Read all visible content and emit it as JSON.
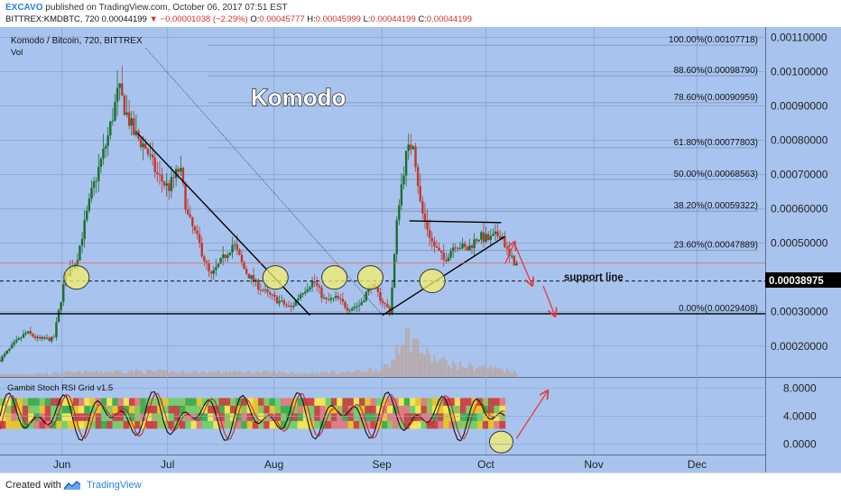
{
  "header": {
    "author": "EXCAVO",
    "published": "published on TradingView.com, October 06, 2017 07:51 EST",
    "symbol": "BITTREX:KMDBTC, 720",
    "last": "0.00044199",
    "arrow": "▼",
    "change": "−0.00001038 (−2.29%)",
    "o_label": "O:",
    "o": "0.00045777",
    "h_label": "H:",
    "h": "0.00045999",
    "l_label": "L:",
    "l": "0.00044199",
    "c_label": "C:",
    "c": "0.00044199"
  },
  "footer": {
    "created": "Created with",
    "brand": "TradingView"
  },
  "colors": {
    "background": "#a8c4ee",
    "candle_up": "#1b6e2c",
    "candle_down": "#c0392b",
    "volume": "#b9a6a3",
    "annotation_red": "#e53935",
    "circle_fill": "#f5f06a"
  },
  "chart_data": {
    "type": "candlestick",
    "legend_title": "Komodo / Bitcoin, 720, BITTREX",
    "volume_label": "Vol",
    "indicator_label": "Gambit Stoch RSI Grid v1.5",
    "annotation_title": "Komodo",
    "support_label": "support line",
    "current_price_label": "0.00038975",
    "current_price": 0.00038975,
    "last_close": 0.00044199,
    "ylim": [
      0.00011,
      0.00113
    ],
    "y_ticks": [
      {
        "value": 0.0011,
        "label": "0.00110000"
      },
      {
        "value": 0.001,
        "label": "0.00100000"
      },
      {
        "value": 0.0009,
        "label": "0.00090000"
      },
      {
        "value": 0.0008,
        "label": "0.00080000"
      },
      {
        "value": 0.0007,
        "label": "0.00070000"
      },
      {
        "value": 0.0006,
        "label": "0.00060000"
      },
      {
        "value": 0.0005,
        "label": "0.00050000"
      },
      {
        "value": 0.0003,
        "label": "0.00030000"
      },
      {
        "value": 0.0002,
        "label": "0.00020000"
      }
    ],
    "fib_levels": [
      {
        "label": "100.00%(0.00107718)",
        "value": 0.00107718
      },
      {
        "label": "88.60%(0.00098790)",
        "value": 0.0009879
      },
      {
        "label": "78.60%(0.00090959)",
        "value": 0.00090959
      },
      {
        "label": "61.80%(0.00077803)",
        "value": 0.00077803
      },
      {
        "label": "50.00%(0.00068563)",
        "value": 0.00068563
      },
      {
        "label": "38.20%(0.00059322)",
        "value": 0.00059322
      },
      {
        "label": "23.60%(0.00047889)",
        "value": 0.00047889
      },
      {
        "label": "0.00%(0.00029408)",
        "value": 0.00029408
      }
    ],
    "x_ticks": [
      {
        "label": "Jun",
        "t": 0.081
      },
      {
        "label": "Jul",
        "t": 0.219
      },
      {
        "label": "Aug",
        "t": 0.358
      },
      {
        "label": "Sep",
        "t": 0.499
      },
      {
        "label": "Oct",
        "t": 0.635
      },
      {
        "label": "Nov",
        "t": 0.776
      },
      {
        "label": "Dec",
        "t": 0.911
      }
    ],
    "price_path": [
      [
        0.0,
        0.00016
      ],
      [
        0.02,
        0.00021
      ],
      [
        0.035,
        0.00024
      ],
      [
        0.05,
        0.00022
      ],
      [
        0.07,
        0.00022
      ],
      [
        0.085,
        0.0004
      ],
      [
        0.1,
        0.00045
      ],
      [
        0.12,
        0.00065
      ],
      [
        0.14,
        0.0008
      ],
      [
        0.155,
        0.00095
      ],
      [
        0.165,
        0.00088
      ],
      [
        0.175,
        0.00082
      ],
      [
        0.19,
        0.00078
      ],
      [
        0.205,
        0.0007
      ],
      [
        0.22,
        0.00066
      ],
      [
        0.235,
        0.00072
      ],
      [
        0.245,
        0.00058
      ],
      [
        0.26,
        0.0005
      ],
      [
        0.275,
        0.0004
      ],
      [
        0.29,
        0.00045
      ],
      [
        0.305,
        0.0005
      ],
      [
        0.32,
        0.00042
      ],
      [
        0.335,
        0.00038
      ],
      [
        0.35,
        0.00035
      ],
      [
        0.365,
        0.00033
      ],
      [
        0.38,
        0.00031
      ],
      [
        0.395,
        0.00036
      ],
      [
        0.41,
        0.00039
      ],
      [
        0.425,
        0.00033
      ],
      [
        0.44,
        0.00034
      ],
      [
        0.455,
        0.00031
      ],
      [
        0.47,
        0.00032
      ],
      [
        0.485,
        0.00038
      ],
      [
        0.5,
        0.00033
      ],
      [
        0.51,
        0.0003
      ],
      [
        0.52,
        0.0006
      ],
      [
        0.53,
        0.00075
      ],
      [
        0.54,
        0.0008
      ],
      [
        0.55,
        0.0006
      ],
      [
        0.565,
        0.0005
      ],
      [
        0.58,
        0.00045
      ],
      [
        0.595,
        0.0005
      ],
      [
        0.61,
        0.00048
      ],
      [
        0.625,
        0.00052
      ],
      [
        0.64,
        0.00051
      ],
      [
        0.655,
        0.00053
      ],
      [
        0.665,
        0.00046
      ],
      [
        0.675,
        0.00044
      ]
    ],
    "volume_path": [
      [
        0.0,
        0.05
      ],
      [
        0.08,
        0.08
      ],
      [
        0.16,
        0.12
      ],
      [
        0.25,
        0.1
      ],
      [
        0.33,
        0.1
      ],
      [
        0.4,
        0.08
      ],
      [
        0.46,
        0.1
      ],
      [
        0.51,
        0.2
      ],
      [
        0.52,
        0.7
      ],
      [
        0.53,
        1.0
      ],
      [
        0.545,
        0.65
      ],
      [
        0.56,
        0.4
      ],
      [
        0.6,
        0.22
      ],
      [
        0.65,
        0.18
      ],
      [
        0.675,
        0.12
      ]
    ],
    "trendlines": [
      {
        "from": [
          0.18,
          0.00082
        ],
        "to": [
          0.405,
          0.00029
        ],
        "style": "solid"
      },
      {
        "from": [
          0.19,
          0.00107
        ],
        "to": [
          0.5,
          0.00029
        ],
        "style": "thin"
      },
      {
        "from": [
          0.0,
          0.00029408
        ],
        "to": [
          1.0,
          0.00029408
        ],
        "style": "solid"
      },
      {
        "from": [
          0.5,
          0.00029
        ],
        "to": [
          0.66,
          0.00052
        ],
        "style": "solid"
      },
      {
        "from": [
          0.535,
          0.000565
        ],
        "to": [
          0.655,
          0.00056
        ],
        "style": "solid"
      },
      {
        "from": [
          0.0,
          0.00044199
        ],
        "to": [
          1.0,
          0.00044199
        ],
        "style": "price"
      },
      {
        "from": [
          0.0,
          0.00038975
        ],
        "to": [
          1.0,
          0.00038975
        ],
        "style": "dashed"
      }
    ],
    "circles": [
      {
        "t": 0.1,
        "v": 0.0004
      },
      {
        "t": 0.36,
        "v": 0.0004
      },
      {
        "t": 0.437,
        "v": 0.0004
      },
      {
        "t": 0.484,
        "v": 0.0004
      },
      {
        "t": 0.565,
        "v": 0.00039
      }
    ],
    "arrows": [
      {
        "from": [
          0.66,
          0.00044
        ],
        "to": [
          0.672,
          0.0005
        ]
      },
      {
        "from": [
          0.672,
          0.0005
        ],
        "to": [
          0.695,
          0.00038
        ]
      },
      {
        "from": [
          0.71,
          0.000375
        ],
        "to": [
          0.725,
          0.00029
        ]
      }
    ],
    "indicator": {
      "ylim": [
        -1.5,
        9.5
      ],
      "ticks": [
        {
          "value": 8,
          "label": "8.0000"
        },
        {
          "value": 4,
          "label": "4.0000"
        },
        {
          "value": 0,
          "label": "0.0000"
        }
      ],
      "last_range": 0.66,
      "circle": {
        "t": 0.655,
        "v": 0.3
      },
      "arrow": {
        "from": [
          0.675,
          0.8
        ],
        "to": [
          0.715,
          7.5
        ]
      }
    }
  }
}
